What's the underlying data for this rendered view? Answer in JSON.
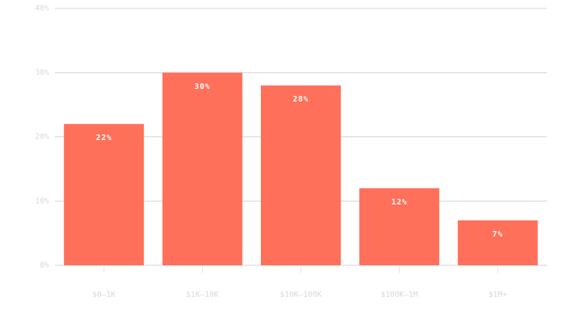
{
  "chart_data": {
    "type": "bar",
    "categories": [
      "$0–1K",
      "$1K–10K",
      "$10K–100K",
      "$100K–1M",
      "$1M+"
    ],
    "values": [
      22,
      30,
      28,
      12,
      7
    ],
    "value_labels": [
      "22%",
      "30%",
      "28%",
      "12%",
      "7%"
    ],
    "color": "#ff705a",
    "ylim": [
      0,
      40
    ],
    "yticks": [
      {
        "value": 0,
        "label": "0%"
      },
      {
        "value": 10,
        "label": "10%"
      },
      {
        "value": 20,
        "label": "20%"
      },
      {
        "value": 30,
        "label": "30%"
      },
      {
        "value": 40,
        "label": "40%"
      }
    ],
    "grid": true
  }
}
